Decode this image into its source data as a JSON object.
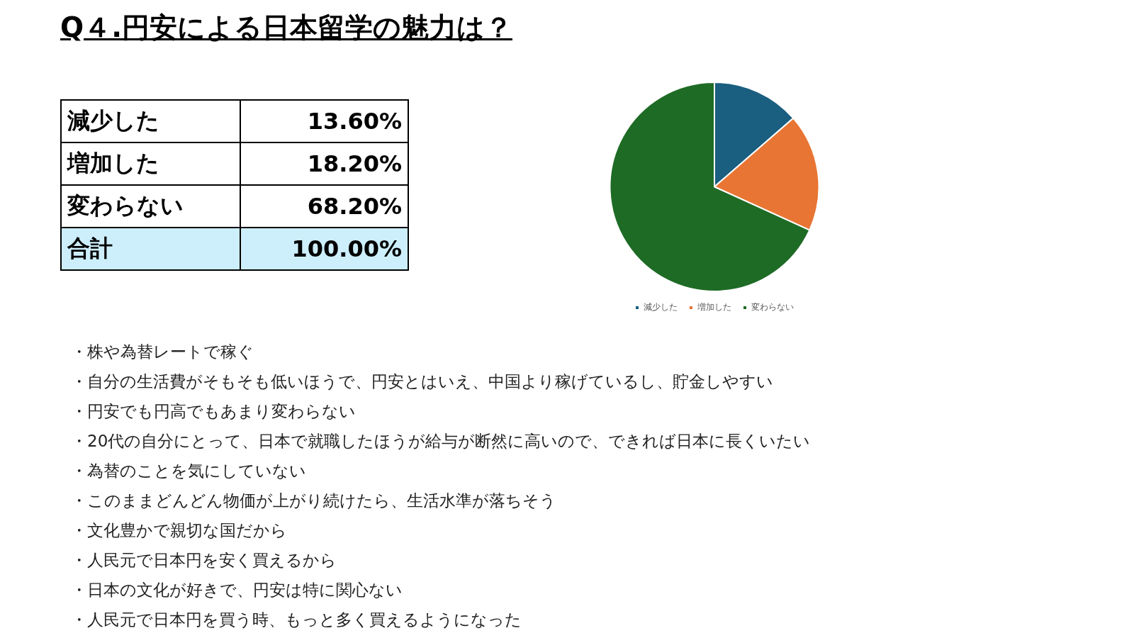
{
  "chart_data": {
    "type": "pie",
    "title": "Q４.円安による日本留学の魅力は？",
    "categories": [
      "減少した",
      "増加した",
      "変わらない"
    ],
    "values": [
      13.6,
      18.2,
      68.2
    ],
    "colors": [
      "#1a5e80",
      "#e87533",
      "#1e6b25"
    ],
    "totals": [
      "100.00%"
    ],
    "legend": "bottom",
    "annotations": [
      "13.60%",
      "18.20%",
      "68.20%",
      "合計",
      "・株や為替レートで稼ぐ",
      "・自分の生活費がそもそも低いほうで、円安とはいえ、中国より稼げているし、貯金しやすい",
      "・円安でも円高でもあまり変わらない",
      "・20代の自分にとって、日本で就職したほうが給与が断然に高いので、できれば日本に長くいたい",
      "・為替のことを気にしていない",
      "・このままどんどん物価が上がり続けたら、生活水準が落ちそう",
      "・文化豊かで親切な国だから",
      "・人民元で日本円を安く買えるから",
      "・日本の文化が好きで、円安は特に関心ない",
      "・人民元で日本円を買う時、もっと多く買えるようになった"
    ]
  }
}
